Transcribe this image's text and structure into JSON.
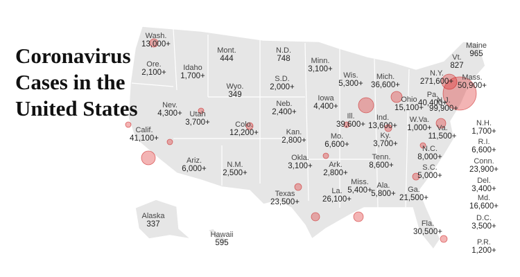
{
  "title": "Coronavirus Cases in the United States",
  "states": [
    {
      "name": "Wash.",
      "cases": "13,000+"
    },
    {
      "name": "Ore.",
      "cases": "2,100+"
    },
    {
      "name": "Idaho",
      "cases": "1,700+"
    },
    {
      "name": "Mont.",
      "cases": "444"
    },
    {
      "name": "N.D.",
      "cases": "748"
    },
    {
      "name": "Minn.",
      "cases": "3,100+"
    },
    {
      "name": "Wis.",
      "cases": "5,300+"
    },
    {
      "name": "Mich.",
      "cases": "36,600+"
    },
    {
      "name": "N.Y.",
      "cases": "271,600+"
    },
    {
      "name": "Vt.",
      "cases": "827"
    },
    {
      "name": "Maine",
      "cases": "965"
    },
    {
      "name": "Mass.",
      "cases": "50,900+"
    },
    {
      "name": "S.D.",
      "cases": "2,000+"
    },
    {
      "name": "Wyo.",
      "cases": "349"
    },
    {
      "name": "Nev.",
      "cases": "4,300+"
    },
    {
      "name": "Utah",
      "cases": "3,700+"
    },
    {
      "name": "Neb.",
      "cases": "2,400+"
    },
    {
      "name": "Iowa",
      "cases": "4,400+"
    },
    {
      "name": "Ill.",
      "cases": "39,600+"
    },
    {
      "name": "Ohio",
      "cases": "15,100+"
    },
    {
      "name": "Pa.",
      "cases": "40,400+"
    },
    {
      "name": "N.J.",
      "cases": "99,900+"
    },
    {
      "name": "Ind.",
      "cases": "13,600+"
    },
    {
      "name": "W.Va.",
      "cases": "1,000+"
    },
    {
      "name": "Va.",
      "cases": "11,500+"
    },
    {
      "name": "Colo.",
      "cases": "12,200+"
    },
    {
      "name": "Calif.",
      "cases": "41,100+"
    },
    {
      "name": "Kan.",
      "cases": "2,800+"
    },
    {
      "name": "Mo.",
      "cases": "6,600+"
    },
    {
      "name": "Ky.",
      "cases": "3,700+"
    },
    {
      "name": "N.C.",
      "cases": "8,000+"
    },
    {
      "name": "Ariz.",
      "cases": "6,000+"
    },
    {
      "name": "N.M.",
      "cases": "2,500+"
    },
    {
      "name": "Okla.",
      "cases": "3,100+"
    },
    {
      "name": "Ark.",
      "cases": "2,800+"
    },
    {
      "name": "Tenn.",
      "cases": "8,600+"
    },
    {
      "name": "S.C.",
      "cases": "5,000+"
    },
    {
      "name": "Miss.",
      "cases": "5,400+"
    },
    {
      "name": "Ala.",
      "cases": "5,800+"
    },
    {
      "name": "Ga.",
      "cases": "21,500+"
    },
    {
      "name": "La.",
      "cases": "26,100+"
    },
    {
      "name": "Texas",
      "cases": "23,500+"
    },
    {
      "name": "Fla.",
      "cases": "30,500+"
    },
    {
      "name": "Alaska",
      "cases": "337"
    },
    {
      "name": "Hawaii",
      "cases": "595"
    },
    {
      "name": "N.H.",
      "cases": "1,700+"
    },
    {
      "name": "R.I.",
      "cases": "6,600+"
    },
    {
      "name": "Conn.",
      "cases": "23,900+"
    },
    {
      "name": "Del.",
      "cases": "3,400+"
    },
    {
      "name": "Md.",
      "cases": "16,600+"
    },
    {
      "name": "D.C.",
      "cases": "3,500+"
    },
    {
      "name": "P.R.",
      "cases": "1,200+"
    }
  ]
}
